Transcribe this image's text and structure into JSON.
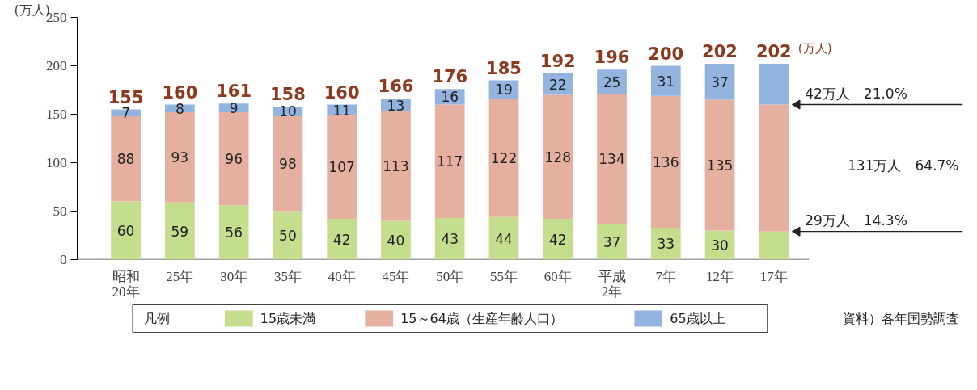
{
  "chart_data": {
    "type": "bar",
    "stacked": true,
    "ylabel": "(万人)",
    "legend_title": "凡例",
    "legend": "bottom",
    "grid": false,
    "categories": [
      "昭和\n20年",
      "25年",
      "30年",
      "35年",
      "40年",
      "45年",
      "50年",
      "55年",
      "60年",
      "平成\n2年",
      "7年",
      "12年",
      "17年"
    ],
    "ylim": [
      0,
      250
    ],
    "yticks": [
      0,
      50,
      100,
      150,
      200,
      250
    ],
    "series": [
      {
        "name": "15歳未満",
        "color": "#c5de8e",
        "values": [
          60,
          59,
          56,
          50,
          42,
          40,
          43,
          44,
          42,
          37,
          33,
          30,
          29
        ],
        "value_labels": [
          "60",
          "59",
          "56",
          "50",
          "42",
          "40",
          "43",
          "44",
          "42",
          "37",
          "33",
          "30",
          null
        ]
      },
      {
        "name": "15～64歳（生産年齢人口）",
        "color": "#e5b0a0",
        "values": [
          88,
          93,
          96,
          98,
          107,
          113,
          117,
          122,
          128,
          134,
          136,
          135,
          131
        ],
        "value_labels": [
          "88",
          "93",
          "96",
          "98",
          "107",
          "113",
          "117",
          "122",
          "128",
          "134",
          "136",
          "135",
          null
        ]
      },
      {
        "name": "65歳以上",
        "color": "#94b4e0",
        "values": [
          7,
          8,
          9,
          10,
          11,
          13,
          16,
          19,
          22,
          25,
          31,
          37,
          42
        ],
        "value_labels": [
          "7",
          "8",
          "9",
          "10",
          "11",
          "13",
          "16",
          "19",
          "22",
          "25",
          "31",
          "37",
          null
        ]
      }
    ],
    "totals": [
      "155",
      "160",
      "161",
      "158",
      "160",
      "166",
      "176",
      "185",
      "192",
      "196",
      "200",
      "202",
      "202"
    ],
    "annotations": [
      {
        "text": "42万人　21.0%",
        "x": "17年",
        "y": 160
      },
      "131万人　64.7%",
      {
        "text": "29万人　14.3%",
        "x": "17年",
        "y": 29
      },
      "(万人)",
      "資料）各年国勢調査"
    ]
  }
}
